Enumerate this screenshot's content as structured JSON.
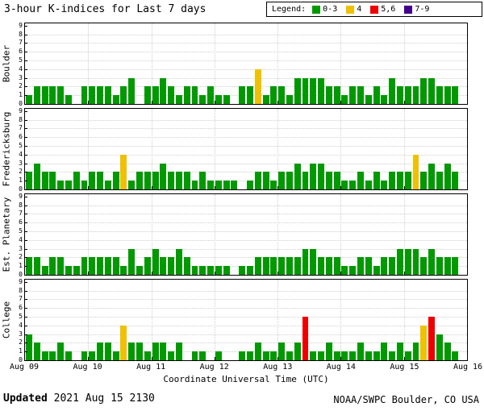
{
  "title": "3-hour K-indices for Last 7 days",
  "legend": {
    "label": "Legend:",
    "items": [
      {
        "key": "green",
        "label": "0-3",
        "color": "#009900"
      },
      {
        "key": "yellow",
        "label": "4",
        "color": "#EFC100"
      },
      {
        "key": "red",
        "label": "5,6",
        "color": "#EE0000"
      },
      {
        "key": "purple",
        "label": "7-9",
        "color": "#44008B"
      }
    ]
  },
  "x_axis": {
    "tick_labels": [
      "Aug 09",
      "Aug 10",
      "Aug 11",
      "Aug 12",
      "Aug 13",
      "Aug 14",
      "Aug 15",
      "Aug 16"
    ],
    "label": "Coordinate Universal Time (UTC)"
  },
  "y_axis": {
    "min": 0,
    "max": 9,
    "ticks": [
      0,
      1,
      2,
      3,
      4,
      5,
      6,
      7,
      8,
      9
    ]
  },
  "footer": {
    "updated_label": "Updated",
    "updated_value": "2021 Aug 15 2130",
    "credit": "NOAA/SWPC Boulder, CO USA"
  },
  "chart_data": {
    "type": "bar",
    "title": "3-hour K-indices for Last 7 days",
    "xlabel": "Coordinate Universal Time (UTC)",
    "ylabel": "",
    "ylim": [
      0,
      9
    ],
    "grid": true,
    "legend_position": "top-right",
    "interval_hours": 3,
    "days": 7,
    "slots_per_day": 8,
    "x_tick_labels": [
      "Aug 09",
      "Aug 10",
      "Aug 11",
      "Aug 12",
      "Aug 13",
      "Aug 14",
      "Aug 15",
      "Aug 16"
    ],
    "color_rule": "K 0-3 green, K 4 yellow, K 5-6 red, K 7-9 purple",
    "colors": {
      "green": "#009900",
      "yellow": "#EFC100",
      "red": "#EE0000",
      "purple": "#44008B"
    },
    "panels": [
      {
        "station": "Boulder",
        "values": [
          1,
          2,
          2,
          2,
          2,
          1,
          0,
          2,
          2,
          2,
          2,
          1,
          2,
          3,
          0,
          2,
          2,
          3,
          2,
          1,
          2,
          2,
          1,
          2,
          1,
          1,
          0,
          2,
          2,
          4,
          1,
          2,
          2,
          1,
          3,
          3,
          3,
          3,
          2,
          2,
          1,
          2,
          2,
          1,
          2,
          1,
          3,
          2,
          2,
          2,
          3,
          3,
          2,
          2,
          2
        ]
      },
      {
        "station": "Fredericksburg",
        "values": [
          2,
          3,
          2,
          2,
          1,
          1,
          2,
          1,
          2,
          2,
          1,
          2,
          4,
          1,
          2,
          2,
          2,
          3,
          2,
          2,
          2,
          1,
          2,
          1,
          1,
          1,
          1,
          0,
          1,
          2,
          2,
          1,
          2,
          2,
          3,
          2,
          3,
          3,
          2,
          2,
          1,
          1,
          2,
          1,
          2,
          1,
          2,
          2,
          2,
          4,
          2,
          3,
          2,
          3,
          2
        ]
      },
      {
        "station": "Est. Planetary",
        "values": [
          2,
          2,
          1,
          2,
          2,
          1,
          1,
          2,
          2,
          2,
          2,
          2,
          1,
          3,
          1,
          2,
          3,
          2,
          2,
          3,
          2,
          1,
          1,
          1,
          1,
          1,
          0,
          1,
          1,
          2,
          2,
          2,
          2,
          2,
          2,
          3,
          3,
          2,
          2,
          2,
          1,
          1,
          2,
          2,
          1,
          2,
          2,
          3,
          3,
          3,
          2,
          3,
          2,
          2,
          2
        ]
      },
      {
        "station": "College",
        "values": [
          3,
          2,
          1,
          1,
          2,
          1,
          0,
          1,
          1,
          2,
          2,
          1,
          4,
          2,
          2,
          1,
          2,
          2,
          1,
          2,
          0,
          1,
          1,
          0,
          1,
          0,
          0,
          1,
          1,
          2,
          1,
          1,
          2,
          1,
          2,
          5,
          1,
          1,
          2,
          1,
          1,
          1,
          2,
          1,
          1,
          2,
          1,
          2,
          1,
          2,
          4,
          5,
          3,
          2,
          1
        ]
      }
    ]
  }
}
